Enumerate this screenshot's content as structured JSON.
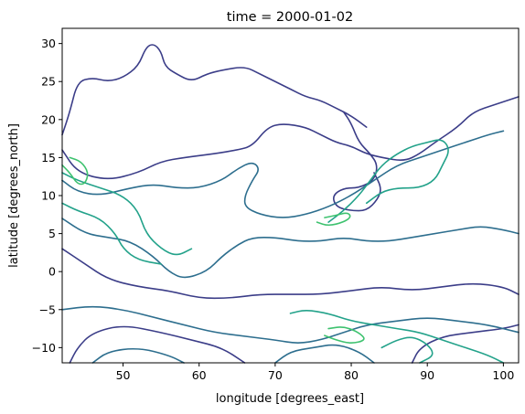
{
  "chart_data": {
    "type": "contour",
    "title": "time = 2000-01-02",
    "xlabel": "longitude [degrees_east]",
    "ylabel": "latitude [degrees_north]",
    "xlim": [
      42,
      102
    ],
    "ylim": [
      -12,
      32
    ],
    "xticks": [
      {
        "value": 50,
        "label": "50"
      },
      {
        "value": 60,
        "label": "60"
      },
      {
        "value": 70,
        "label": "70"
      },
      {
        "value": 80,
        "label": "80"
      },
      {
        "value": 90,
        "label": "90"
      },
      {
        "value": 100,
        "label": "100"
      }
    ],
    "yticks": [
      {
        "value": -10,
        "label": "−10"
      },
      {
        "value": -5,
        "label": "−5"
      },
      {
        "value": 0,
        "label": "0"
      },
      {
        "value": 5,
        "label": "5"
      },
      {
        "value": 10,
        "label": "10"
      },
      {
        "value": 15,
        "label": "15"
      },
      {
        "value": 20,
        "label": "20"
      },
      {
        "value": 25,
        "label": "25"
      },
      {
        "value": 30,
        "label": "30"
      }
    ],
    "grid": false,
    "colors": {
      "level_1": "#3b3d88",
      "level_2": "#2d6e8e",
      "level_3": "#23a28a",
      "level_4": "#3ec26f"
    },
    "contours": [
      {
        "level": 1,
        "points": [
          [
            42,
            16
          ],
          [
            44,
            13
          ],
          [
            48,
            12
          ],
          [
            52,
            13
          ],
          [
            55,
            14.5
          ],
          [
            58,
            15
          ],
          [
            62,
            15.5
          ],
          [
            65,
            16
          ],
          [
            67,
            16.5
          ],
          [
            69,
            19
          ],
          [
            71,
            19.5
          ],
          [
            74,
            19
          ],
          [
            76,
            18
          ],
          [
            78,
            17
          ],
          [
            80,
            16.5
          ],
          [
            82,
            15.5
          ],
          [
            84,
            15
          ],
          [
            87,
            14.5
          ],
          [
            89,
            15.5
          ],
          [
            91,
            17
          ],
          [
            94,
            19
          ],
          [
            96,
            21
          ],
          [
            99,
            22
          ],
          [
            102,
            23
          ]
        ]
      },
      {
        "level": 1,
        "points": [
          [
            42,
            18
          ],
          [
            43,
            21
          ],
          [
            44,
            25
          ],
          [
            46,
            25.5
          ],
          [
            48,
            25
          ],
          [
            50,
            25.5
          ],
          [
            52,
            27
          ],
          [
            53,
            29.5
          ],
          [
            54,
            30
          ],
          [
            55,
            29
          ],
          [
            55.5,
            27
          ],
          [
            57,
            26
          ],
          [
            59,
            25
          ],
          [
            61,
            26
          ],
          [
            63,
            26.5
          ],
          [
            66,
            27
          ],
          [
            68,
            26
          ],
          [
            70,
            25
          ],
          [
            72,
            24
          ],
          [
            74,
            23
          ],
          [
            76,
            22.5
          ],
          [
            78,
            21.5
          ],
          [
            80,
            20.5
          ],
          [
            82,
            19
          ]
        ]
      },
      {
        "level": 1,
        "points": [
          [
            42,
            3
          ],
          [
            45,
            1
          ],
          [
            48,
            -1
          ],
          [
            52,
            -2
          ],
          [
            56,
            -2.5
          ],
          [
            60,
            -3.5
          ],
          [
            64,
            -3.5
          ],
          [
            68,
            -3
          ],
          [
            72,
            -3
          ],
          [
            76,
            -3
          ],
          [
            80,
            -2.5
          ],
          [
            84,
            -2
          ],
          [
            88,
            -2.5
          ],
          [
            92,
            -2
          ],
          [
            96,
            -1.5
          ],
          [
            100,
            -2
          ],
          [
            102,
            -3
          ]
        ]
      },
      {
        "level": 1,
        "points": [
          [
            43,
            -12
          ],
          [
            44,
            -10
          ],
          [
            46,
            -8
          ],
          [
            50,
            -7
          ],
          [
            55,
            -8
          ],
          [
            59,
            -9
          ],
          [
            63,
            -10
          ],
          [
            66,
            -12
          ]
        ]
      },
      {
        "level": 1,
        "points": [
          [
            88,
            -12
          ],
          [
            89,
            -10
          ],
          [
            92,
            -8.5
          ],
          [
            96,
            -8
          ],
          [
            100,
            -7.5
          ],
          [
            102,
            -7
          ]
        ]
      },
      {
        "level": 1,
        "points": [
          [
            79,
            21
          ],
          [
            80,
            19.5
          ],
          [
            81,
            17
          ],
          [
            82.5,
            15.5
          ],
          [
            83.5,
            14
          ],
          [
            83,
            12
          ],
          [
            81,
            11
          ],
          [
            79,
            11
          ],
          [
            77.5,
            10
          ],
          [
            78,
            8.5
          ],
          [
            80,
            8
          ],
          [
            82,
            8
          ],
          [
            83.5,
            9.5
          ],
          [
            84,
            11
          ],
          [
            83,
            13
          ]
        ]
      },
      {
        "level": 2,
        "points": [
          [
            42,
            12
          ],
          [
            44,
            10.5
          ],
          [
            47,
            10
          ],
          [
            51,
            11
          ],
          [
            54,
            11.5
          ],
          [
            57,
            11
          ],
          [
            60,
            11
          ],
          [
            63,
            12
          ],
          [
            65,
            13.5
          ],
          [
            67,
            14.5
          ],
          [
            68,
            13.5
          ],
          [
            67,
            12
          ],
          [
            66,
            10
          ],
          [
            66,
            8.5
          ],
          [
            68,
            7.5
          ],
          [
            71,
            7
          ],
          [
            74,
            7.5
          ],
          [
            77,
            8.5
          ],
          [
            80,
            10
          ],
          [
            83,
            12
          ],
          [
            86,
            14
          ],
          [
            89,
            15
          ],
          [
            92,
            16
          ],
          [
            95,
            17
          ],
          [
            98,
            18
          ],
          [
            100,
            18.5
          ]
        ]
      },
      {
        "level": 2,
        "points": [
          [
            42,
            7
          ],
          [
            45,
            5
          ],
          [
            48,
            4.5
          ],
          [
            51,
            4
          ],
          [
            54,
            2
          ],
          [
            56,
            0
          ],
          [
            58,
            -1
          ],
          [
            61,
            0
          ],
          [
            63,
            2
          ],
          [
            65,
            3.5
          ],
          [
            67,
            4.5
          ],
          [
            70,
            4.5
          ],
          [
            73,
            4
          ],
          [
            76,
            4
          ],
          [
            79,
            4.5
          ],
          [
            82,
            4
          ],
          [
            85,
            4
          ],
          [
            88,
            4.5
          ],
          [
            91,
            5
          ],
          [
            94,
            5.5
          ],
          [
            97,
            6
          ],
          [
            100,
            5.5
          ],
          [
            102,
            5
          ]
        ]
      },
      {
        "level": 2,
        "points": [
          [
            42,
            -5
          ],
          [
            46,
            -4.5
          ],
          [
            50,
            -5
          ],
          [
            54,
            -6
          ],
          [
            58,
            -7
          ],
          [
            62,
            -8
          ],
          [
            66,
            -8.5
          ],
          [
            70,
            -9
          ],
          [
            73,
            -9.5
          ],
          [
            76,
            -9
          ],
          [
            79,
            -8
          ],
          [
            82,
            -7
          ],
          [
            86,
            -6.5
          ],
          [
            90,
            -6
          ],
          [
            94,
            -6.5
          ],
          [
            98,
            -7
          ],
          [
            102,
            -8
          ]
        ]
      },
      {
        "level": 2,
        "points": [
          [
            46,
            -12
          ],
          [
            48,
            -10.5
          ],
          [
            52,
            -10
          ],
          [
            56,
            -11
          ],
          [
            58,
            -12
          ]
        ]
      },
      {
        "level": 2,
        "points": [
          [
            70,
            -12
          ],
          [
            72,
            -10.5
          ],
          [
            75,
            -10
          ],
          [
            78,
            -9.5
          ],
          [
            81,
            -10.5
          ],
          [
            83,
            -12
          ]
        ]
      },
      {
        "level": 3,
        "points": [
          [
            42,
            13
          ],
          [
            44,
            12
          ],
          [
            47,
            11
          ],
          [
            50,
            10
          ],
          [
            52,
            8
          ],
          [
            53,
            5
          ],
          [
            55,
            3
          ],
          [
            57,
            2
          ],
          [
            59,
            3
          ]
        ]
      },
      {
        "level": 3,
        "points": [
          [
            42,
            9
          ],
          [
            44,
            8
          ],
          [
            47,
            7
          ],
          [
            49,
            5
          ],
          [
            50,
            3
          ],
          [
            52,
            1.5
          ],
          [
            55,
            1
          ]
        ]
      },
      {
        "level": 3,
        "points": [
          [
            77,
            6.5
          ],
          [
            79,
            8
          ],
          [
            81,
            10
          ],
          [
            82.5,
            12
          ],
          [
            84,
            14
          ],
          [
            86,
            15.5
          ],
          [
            88,
            16.5
          ],
          [
            90,
            17
          ],
          [
            92,
            17.5
          ],
          [
            93,
            16
          ],
          [
            92,
            14
          ],
          [
            91,
            12
          ],
          [
            89,
            11
          ],
          [
            86,
            11
          ],
          [
            84,
            10.5
          ],
          [
            82,
            9
          ]
        ]
      },
      {
        "level": 3,
        "points": [
          [
            72,
            -5.5
          ],
          [
            74,
            -5
          ],
          [
            77,
            -5.5
          ],
          [
            80,
            -6.5
          ],
          [
            83,
            -7
          ],
          [
            86,
            -7.5
          ],
          [
            89,
            -8
          ],
          [
            92,
            -9
          ],
          [
            95,
            -10
          ],
          [
            98,
            -11
          ],
          [
            100,
            -12
          ]
        ]
      },
      {
        "level": 3,
        "points": [
          [
            84,
            -10
          ],
          [
            86,
            -9
          ],
          [
            88,
            -8.5
          ],
          [
            90,
            -9.5
          ],
          [
            91,
            -11
          ],
          [
            89,
            -12
          ]
        ]
      },
      {
        "level": 4,
        "points": [
          [
            42,
            14
          ],
          [
            43,
            13
          ],
          [
            44,
            11.5
          ],
          [
            45,
            11.5
          ],
          [
            45.5,
            13
          ],
          [
            44.5,
            14.5
          ],
          [
            43,
            15
          ]
        ]
      },
      {
        "level": 4,
        "points": [
          [
            75.5,
            6.5
          ],
          [
            77,
            6
          ],
          [
            79,
            6.5
          ],
          [
            80,
            7.2
          ],
          [
            79.5,
            7.8
          ],
          [
            78,
            7.4
          ],
          [
            76.5,
            7.1
          ]
        ]
      },
      {
        "level": 4,
        "points": [
          [
            77,
            -7.5
          ],
          [
            79,
            -7.2
          ],
          [
            81,
            -8
          ],
          [
            82,
            -9
          ],
          [
            80,
            -9.5
          ],
          [
            78,
            -9
          ],
          [
            76.5,
            -8.4
          ]
        ]
      }
    ]
  }
}
